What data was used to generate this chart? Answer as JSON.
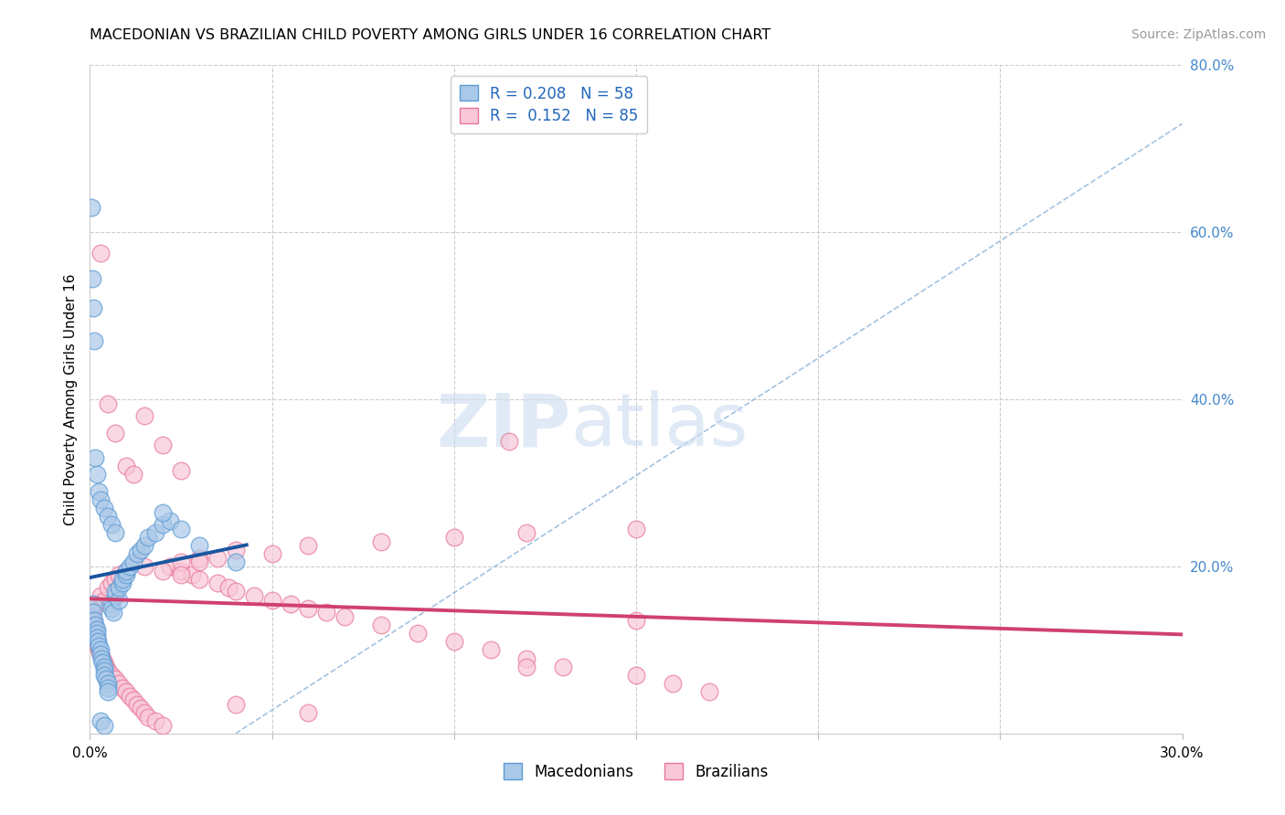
{
  "title": "MACEDONIAN VS BRAZILIAN CHILD POVERTY AMONG GIRLS UNDER 16 CORRELATION CHART",
  "source": "Source: ZipAtlas.com",
  "ylabel": "Child Poverty Among Girls Under 16",
  "xlim": [
    0.0,
    0.3
  ],
  "ylim": [
    0.0,
    0.8
  ],
  "xticks": [
    0.0,
    0.05,
    0.1,
    0.15,
    0.2,
    0.25,
    0.3
  ],
  "xtick_labels": [
    "0.0%",
    "",
    "",
    "",
    "",
    "",
    "30.0%"
  ],
  "yticks_right": [
    0.0,
    0.2,
    0.4,
    0.6,
    0.8
  ],
  "ytick_labels_right": [
    "",
    "20.0%",
    "40.0%",
    "60.0%",
    "80.0%"
  ],
  "macedonian_color": "#aac8e8",
  "macedonian_edge": "#5b9bd5",
  "brazilian_color": "#f8c8d8",
  "brazilian_edge": "#e87898",
  "macedonian_R": 0.208,
  "macedonian_N": 58,
  "brazilian_R": 0.152,
  "brazilian_N": 85,
  "background_color": "#ffffff",
  "grid_color": "#cccccc",
  "legend_macedonians": "Macedonians",
  "legend_brazilians": "Brazilians",
  "mac_trend_color": "#1a56a0",
  "bra_trend_color": "#d04070",
  "ref_line_color": "#99bbdd",
  "mac_x": [
    0.0008,
    0.001,
    0.0012,
    0.0015,
    0.0018,
    0.002,
    0.002,
    0.0022,
    0.0025,
    0.003,
    0.003,
    0.0032,
    0.0035,
    0.004,
    0.004,
    0.004,
    0.0045,
    0.005,
    0.005,
    0.005,
    0.006,
    0.006,
    0.0065,
    0.007,
    0.007,
    0.008,
    0.008,
    0.009,
    0.009,
    0.01,
    0.01,
    0.011,
    0.012,
    0.013,
    0.014,
    0.015,
    0.016,
    0.018,
    0.02,
    0.022,
    0.0005,
    0.0007,
    0.001,
    0.0012,
    0.0015,
    0.002,
    0.0025,
    0.003,
    0.004,
    0.005,
    0.006,
    0.007,
    0.003,
    0.004,
    0.02,
    0.025,
    0.03,
    0.04
  ],
  "mac_y": [
    0.155,
    0.145,
    0.135,
    0.13,
    0.125,
    0.12,
    0.115,
    0.11,
    0.105,
    0.1,
    0.095,
    0.09,
    0.085,
    0.08,
    0.075,
    0.07,
    0.065,
    0.06,
    0.055,
    0.05,
    0.155,
    0.15,
    0.145,
    0.165,
    0.17,
    0.16,
    0.175,
    0.18,
    0.185,
    0.19,
    0.195,
    0.2,
    0.205,
    0.215,
    0.22,
    0.225,
    0.235,
    0.24,
    0.25,
    0.255,
    0.63,
    0.545,
    0.51,
    0.47,
    0.33,
    0.31,
    0.29,
    0.28,
    0.27,
    0.26,
    0.25,
    0.24,
    0.015,
    0.01,
    0.265,
    0.245,
    0.225,
    0.205
  ],
  "bra_x": [
    0.0005,
    0.0007,
    0.0009,
    0.001,
    0.0012,
    0.0015,
    0.0018,
    0.002,
    0.002,
    0.0022,
    0.0025,
    0.003,
    0.003,
    0.0035,
    0.004,
    0.004,
    0.0045,
    0.005,
    0.005,
    0.006,
    0.006,
    0.007,
    0.007,
    0.008,
    0.008,
    0.009,
    0.01,
    0.01,
    0.011,
    0.012,
    0.013,
    0.014,
    0.015,
    0.016,
    0.018,
    0.02,
    0.022,
    0.025,
    0.025,
    0.028,
    0.03,
    0.03,
    0.035,
    0.038,
    0.04,
    0.045,
    0.05,
    0.055,
    0.06,
    0.065,
    0.07,
    0.08,
    0.09,
    0.1,
    0.11,
    0.12,
    0.13,
    0.15,
    0.16,
    0.17,
    0.003,
    0.005,
    0.007,
    0.01,
    0.012,
    0.015,
    0.02,
    0.025,
    0.03,
    0.035,
    0.04,
    0.05,
    0.06,
    0.08,
    0.1,
    0.12,
    0.15,
    0.04,
    0.06,
    0.12,
    0.15,
    0.015,
    0.02,
    0.025,
    0.115
  ],
  "bra_y": [
    0.145,
    0.14,
    0.135,
    0.13,
    0.125,
    0.12,
    0.115,
    0.11,
    0.155,
    0.105,
    0.1,
    0.095,
    0.165,
    0.09,
    0.085,
    0.16,
    0.08,
    0.075,
    0.175,
    0.07,
    0.18,
    0.065,
    0.185,
    0.06,
    0.19,
    0.055,
    0.05,
    0.195,
    0.045,
    0.04,
    0.035,
    0.03,
    0.025,
    0.02,
    0.015,
    0.01,
    0.2,
    0.195,
    0.205,
    0.19,
    0.185,
    0.21,
    0.18,
    0.175,
    0.17,
    0.165,
    0.16,
    0.155,
    0.15,
    0.145,
    0.14,
    0.13,
    0.12,
    0.11,
    0.1,
    0.09,
    0.08,
    0.07,
    0.06,
    0.05,
    0.575,
    0.395,
    0.36,
    0.32,
    0.31,
    0.38,
    0.345,
    0.315,
    0.205,
    0.21,
    0.22,
    0.215,
    0.225,
    0.23,
    0.235,
    0.24,
    0.245,
    0.035,
    0.025,
    0.08,
    0.135,
    0.2,
    0.195,
    0.19,
    0.35
  ]
}
